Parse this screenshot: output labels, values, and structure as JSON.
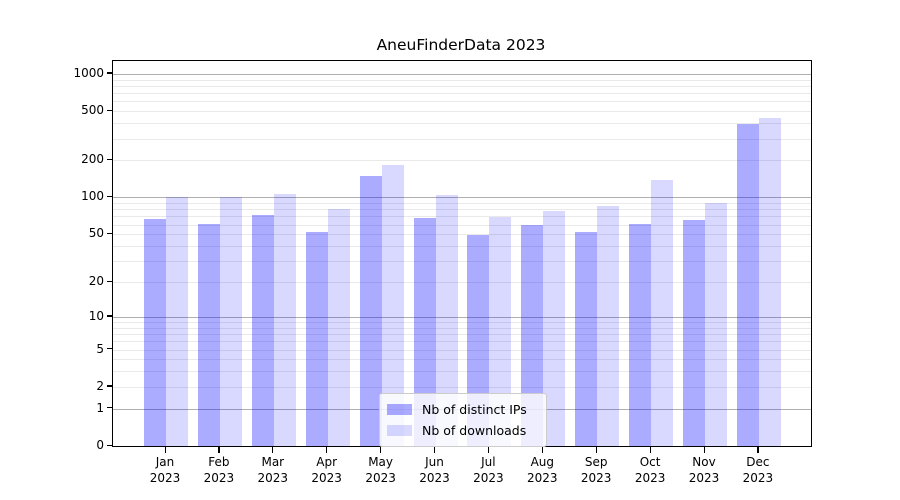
{
  "title": "AneuFinderData 2023",
  "chart_data": {
    "type": "bar",
    "title": "AneuFinderData 2023",
    "y_scale": "log1p",
    "categories": [
      "Jan\n2023",
      "Feb\n2023",
      "Mar\n2023",
      "Apr\n2023",
      "May\n2023",
      "Jun\n2023",
      "Jul\n2023",
      "Aug\n2023",
      "Sep\n2023",
      "Oct\n2023",
      "Nov\n2023",
      "Dec\n2023"
    ],
    "series": [
      {
        "name": "Nb of distinct IPs",
        "color": "rgba(0,0,255,0.33)",
        "values": [
          67,
          61,
          72,
          52,
          150,
          68,
          49,
          60,
          52,
          61,
          66,
          392
        ]
      },
      {
        "name": "Nb of downloads",
        "color": "rgba(0,0,255,0.15)",
        "values": [
          100,
          100,
          106,
          80,
          185,
          105,
          69,
          78,
          85,
          140,
          90,
          440
        ]
      }
    ],
    "y_ticks": [
      0,
      1,
      2,
      5,
      10,
      20,
      50,
      100,
      200,
      500,
      1000
    ],
    "ylim": [
      0,
      1280
    ],
    "xlabel": "",
    "ylabel": "",
    "grid": {
      "on": true,
      "major_color": "#b0b0b0",
      "minor_color": "#e9e9e9"
    },
    "legend": {
      "position": "bottom-center"
    }
  }
}
